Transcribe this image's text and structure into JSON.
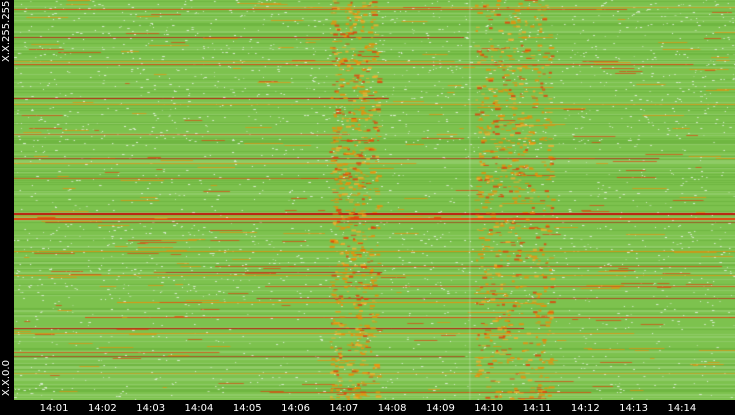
{
  "chart_data": {
    "type": "heatmap",
    "y_axis": {
      "top_label": "X.X.255.255",
      "bottom_label": "X.X.0.0"
    },
    "x_axis": {
      "tick_labels": [
        "14:01",
        "14:02",
        "14:03",
        "14:04",
        "14:05",
        "14:06",
        "14:07",
        "14:08",
        "14:09",
        "14:10",
        "14:11",
        "14:12",
        "14:13",
        "14:14"
      ],
      "tick_minutes": [
        1,
        2,
        3,
        4,
        5,
        6,
        7,
        8,
        9,
        10,
        11,
        12,
        13,
        14
      ],
      "range_minutes": [
        0.17,
        15.1
      ]
    },
    "colors": {
      "background_green": "#7dc24e",
      "light_green": "#9fd37a",
      "dark_green": "#5fa832",
      "speckle": "#d9ecd0",
      "orange": "#e8900c",
      "red_orange": "#e0420a",
      "red": "#c0140a"
    },
    "highlight_windows_minutes": [
      [
        6.7,
        7.7
      ],
      [
        9.7,
        11.3
      ]
    ]
  }
}
